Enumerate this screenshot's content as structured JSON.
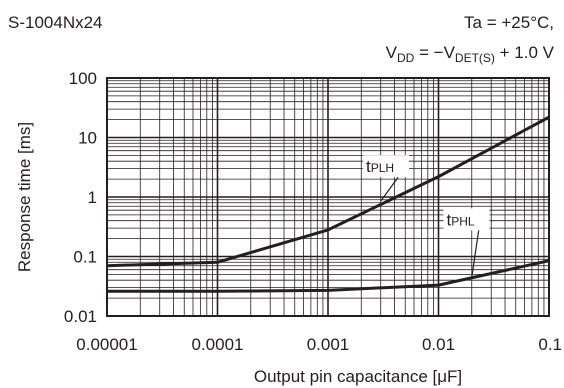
{
  "chart_data": {
    "type": "line",
    "title": "S-1004Nx24",
    "conditions": {
      "line1": "Ta = +25°C,",
      "line2_prefix": "V",
      "line2_prefix_sub": "DD",
      "line2_mid": " = −V",
      "line2_mid_sub": "DET(S)",
      "line2_suffix": " + 1.0 V"
    },
    "xlabel": "Output pin capacitance [μF]",
    "ylabel": "Response time [ms]",
    "x_scale": "log",
    "y_scale": "log",
    "xlim": [
      1e-05,
      0.1
    ],
    "ylim": [
      0.01,
      100
    ],
    "x_ticks": [
      1e-05,
      0.0001,
      0.001,
      0.01,
      0.1
    ],
    "x_tick_labels": [
      "0.00001",
      "0.0001",
      "0.001",
      "0.01",
      "0.1"
    ],
    "y_ticks": [
      0.01,
      0.1,
      1,
      10,
      100
    ],
    "y_tick_labels": [
      "0.01",
      "0.1",
      "1",
      "10",
      "100"
    ],
    "grid": true,
    "series": [
      {
        "label_main": "t",
        "label_sub": "PLH",
        "color": "#231f20",
        "x": [
          1e-05,
          0.0001,
          0.001,
          0.01,
          0.1
        ],
        "y": [
          0.07,
          0.08,
          0.28,
          2.2,
          22
        ]
      },
      {
        "label_main": "t",
        "label_sub": "PHL",
        "color": "#231f20",
        "x": [
          1e-05,
          0.0001,
          0.001,
          0.01,
          0.1
        ],
        "y": [
          0.026,
          0.026,
          0.027,
          0.033,
          0.085
        ]
      }
    ]
  }
}
